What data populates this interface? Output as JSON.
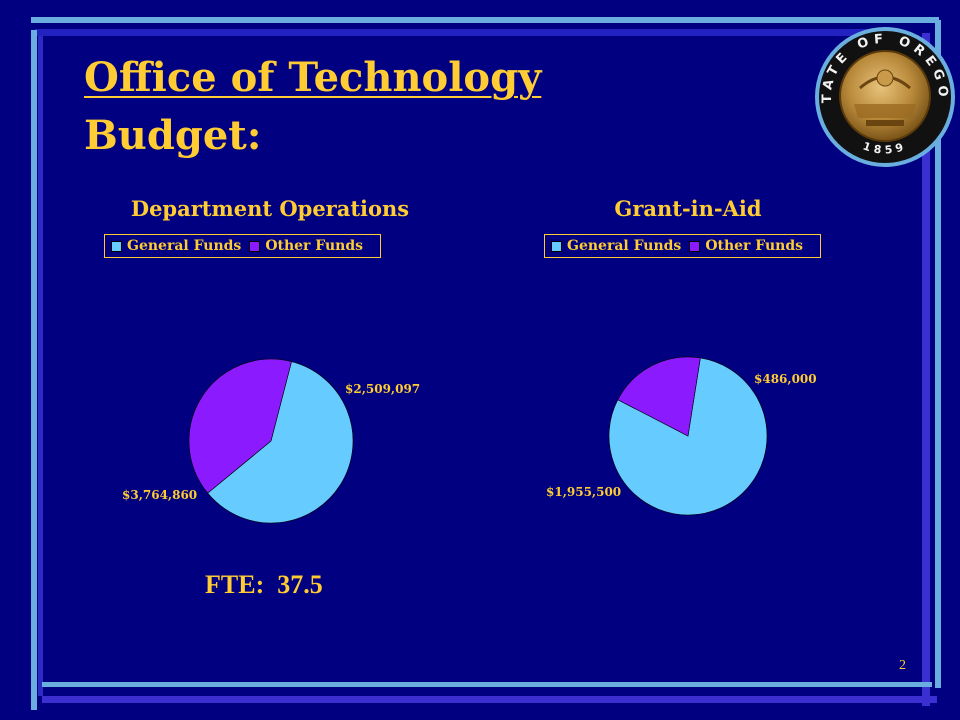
{
  "slide": {
    "title_line1": "Office of Technology",
    "title_line2": "Budget:",
    "fte_text": "FTE:  37.5",
    "page_number": "2",
    "seal": {
      "ring_text": "STATE OF OREGON",
      "year": "1859"
    },
    "colors": {
      "background": "#000080",
      "text": "#ffcc33",
      "general_funds": "#66ccff",
      "other_funds": "#8b1aff"
    }
  },
  "chart_data": [
    {
      "type": "pie",
      "title": "Department Operations",
      "legend": [
        "General Funds",
        "Other Funds"
      ],
      "legend_position": "top",
      "slices": [
        {
          "label": "General Funds",
          "value": 3764860,
          "display": "$3,764,860",
          "color": "#66ccff"
        },
        {
          "label": "Other Funds",
          "value": 2509097,
          "display": "$2,509,097",
          "color": "#8b1aff"
        }
      ]
    },
    {
      "type": "pie",
      "title": "Grant-in-Aid",
      "legend": [
        "General Funds",
        "Other Funds"
      ],
      "legend_position": "top",
      "slices": [
        {
          "label": "General Funds",
          "value": 1955500,
          "display": "$1,955,500",
          "color": "#66ccff"
        },
        {
          "label": "Other Funds",
          "value": 486000,
          "display": "$486,000",
          "color": "#8b1aff"
        }
      ]
    }
  ]
}
